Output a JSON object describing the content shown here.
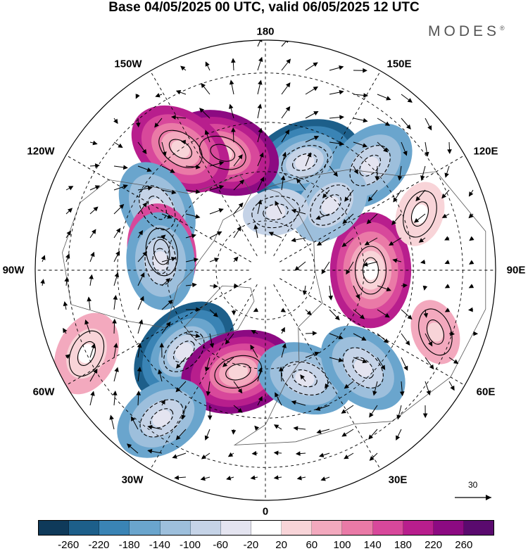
{
  "title": "Base 04/05/2025 00 UTC, valid 06/05/2025 12 UTC",
  "brand": "MODES",
  "brand_mark": "®",
  "longitude_labels": {
    "top": "180",
    "bottom": "0",
    "left": "90W",
    "right": "90E",
    "upper_left_1": "150W",
    "upper_left_2": "120W",
    "lower_left_1": "60W",
    "lower_left_2": "30W",
    "upper_right_1": "150E",
    "upper_right_2": "120E",
    "lower_right_1": "60E",
    "lower_right_2": "30E"
  },
  "reference_vector": {
    "label": "30"
  },
  "colorbar": {
    "colors": [
      "#0f3a5a",
      "#1d5f8a",
      "#3a84b5",
      "#6aa5cd",
      "#9dbfdc",
      "#c5d3e7",
      "#e4e4f0",
      "#ffffff",
      "#f8d4d8",
      "#f3a9be",
      "#ea7aa7",
      "#d8489b",
      "#b81e8d",
      "#8c0a82",
      "#5a0a6e"
    ],
    "tick_labels": [
      "-260",
      "-220",
      "-180",
      "-140",
      "-100",
      "-60",
      "-20",
      "20",
      "60",
      "100",
      "140",
      "180",
      "220",
      "260"
    ]
  },
  "anomaly_centers": [
    {
      "lon": 160,
      "lat": 55,
      "value": -240
    },
    {
      "lon": -160,
      "lat": 52,
      "value": 230
    },
    {
      "lon": -145,
      "lat": 45,
      "value": 200
    },
    {
      "lon": -120,
      "lat": 52,
      "value": -160
    },
    {
      "lon": -100,
      "lat": 58,
      "value": 150
    },
    {
      "lon": -95,
      "lat": 58,
      "value": -140
    },
    {
      "lon": -45,
      "lat": 55,
      "value": -250
    },
    {
      "lon": -15,
      "lat": 58,
      "value": 240
    },
    {
      "lon": -35,
      "lat": 35,
      "value": -150
    },
    {
      "lon": 20,
      "lat": 55,
      "value": -160
    },
    {
      "lon": 45,
      "lat": 48,
      "value": -150
    },
    {
      "lon": 90,
      "lat": 58,
      "value": 220
    },
    {
      "lon": 135,
      "lat": 45,
      "value": -150
    },
    {
      "lon": 135,
      "lat": 62,
      "value": -120
    },
    {
      "lon": 170,
      "lat": 72,
      "value": -90
    },
    {
      "lon": -65,
      "lat": 30,
      "value": 100
    },
    {
      "lon": 70,
      "lat": 35,
      "value": 80
    },
    {
      "lon": 110,
      "lat": 40,
      "value": 60
    }
  ]
}
